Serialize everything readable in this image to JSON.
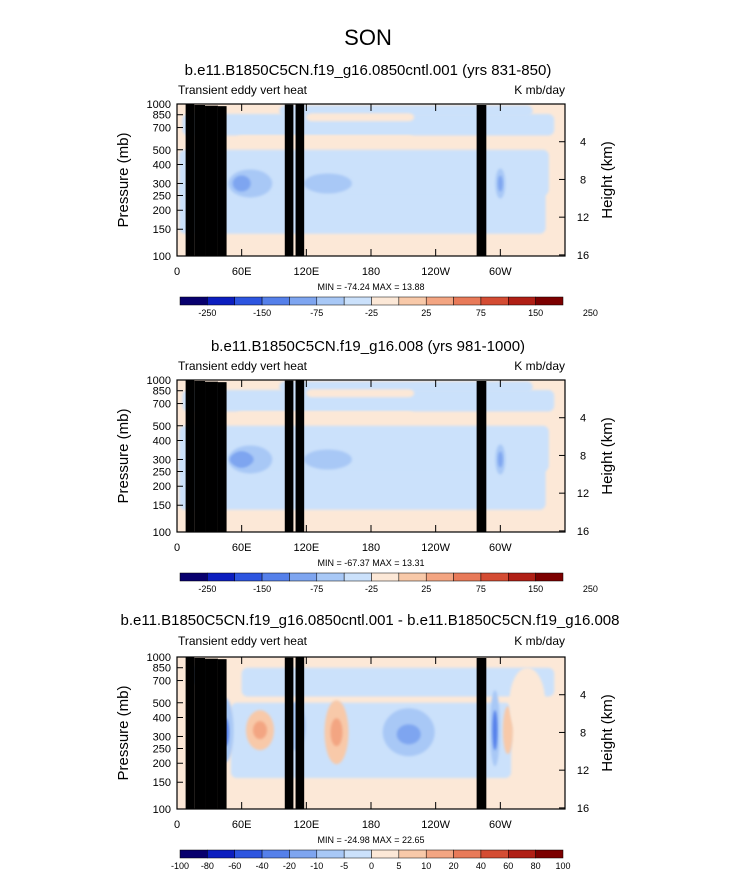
{
  "figure": {
    "title": "SON"
  },
  "colors": {
    "scale": [
      "#08006e",
      "#0c1ebf",
      "#2d55e0",
      "#5580ea",
      "#7ea5f0",
      "#a8c8f6",
      "#cbe1fb",
      "#fce8d7",
      "#f8c9a9",
      "#f3a582",
      "#e87a59",
      "#d44c33",
      "#b01f15",
      "#7c0000"
    ],
    "terrain": "#000000"
  },
  "chart_data": [
    {
      "type": "heatmap",
      "title": "b.e11.B1850C5CN.f19_g16.0850cntl.001 (yrs 831-850)",
      "subtitle_left": "Transient eddy vert heat",
      "subtitle_right": "K mb/day",
      "ylabel": "Pressure (mb)",
      "ylabel_right": "Height (km)",
      "y_ticks": [
        "100",
        "150",
        "200",
        "250",
        "300",
        "400",
        "500",
        "700",
        "850",
        "1000"
      ],
      "y_right_ticks": [
        "16",
        "12",
        "8",
        "4"
      ],
      "x_ticks": [
        "0",
        "60E",
        "120E",
        "180",
        "120W",
        "60W"
      ],
      "stats": "MIN = -74.24   MAX = 13.88",
      "colorbar_labels": [
        "-250",
        "-150",
        "-75",
        "-25",
        "25",
        "75",
        "150",
        "250"
      ]
    },
    {
      "type": "heatmap",
      "title": "b.e11.B1850C5CN.f19_g16.008 (yrs 981-1000)",
      "subtitle_left": "Transient eddy vert heat",
      "subtitle_right": "K mb/day",
      "ylabel": "Pressure (mb)",
      "ylabel_right": "Height (km)",
      "y_ticks": [
        "100",
        "150",
        "200",
        "250",
        "300",
        "400",
        "500",
        "700",
        "850",
        "1000"
      ],
      "y_right_ticks": [
        "16",
        "12",
        "8",
        "4"
      ],
      "x_ticks": [
        "0",
        "60E",
        "120E",
        "180",
        "120W",
        "60W"
      ],
      "stats": "MIN = -67.37   MAX = 13.31",
      "colorbar_labels": [
        "-250",
        "-150",
        "-75",
        "-25",
        "25",
        "75",
        "150",
        "250"
      ]
    },
    {
      "type": "heatmap",
      "title": "b.e11.B1850C5CN.f19_g16.0850cntl.001 - b.e11.B1850C5CN.f19_g16.008",
      "subtitle_left": "Transient eddy vert heat",
      "subtitle_right": "K mb/day",
      "ylabel": "Pressure (mb)",
      "ylabel_right": "Height (km)",
      "y_ticks": [
        "100",
        "150",
        "200",
        "250",
        "300",
        "400",
        "500",
        "700",
        "850",
        "1000"
      ],
      "y_right_ticks": [
        "16",
        "12",
        "8",
        "4"
      ],
      "x_ticks": [
        "0",
        "60E",
        "120E",
        "180",
        "120W",
        "60W"
      ],
      "stats": "MIN = -24.98   MAX = 22.65",
      "colorbar_labels": [
        "-100",
        "-80",
        "-60",
        "-40",
        "-20",
        "-10",
        "-5",
        "0",
        "5",
        "10",
        "20",
        "40",
        "60",
        "80",
        "100"
      ]
    }
  ]
}
